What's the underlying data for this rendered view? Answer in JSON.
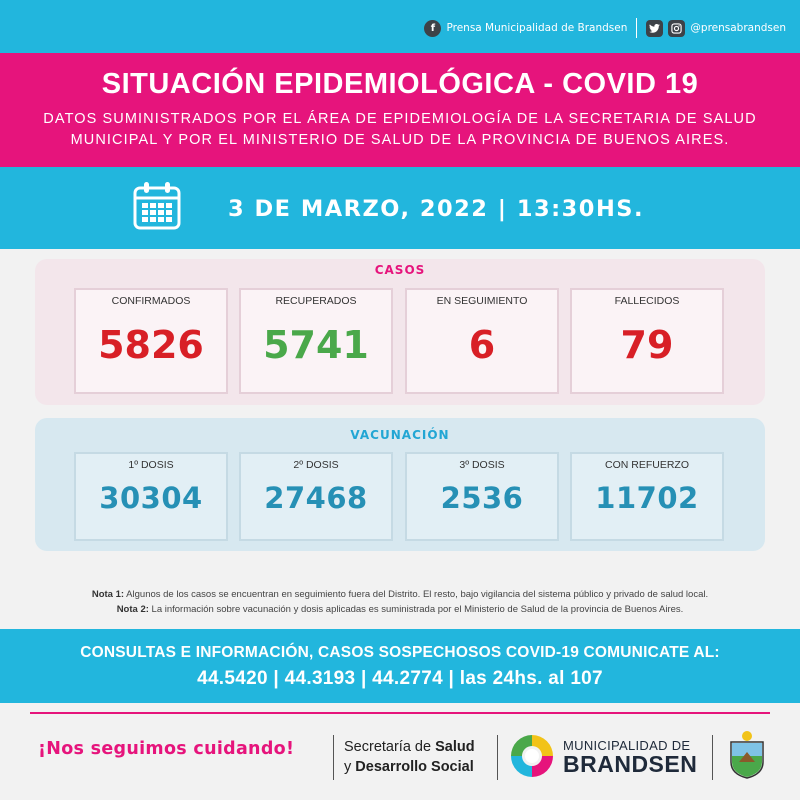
{
  "header": {
    "facebook_label": "Prensa Municipalidad de Brandsen",
    "social_handle": "@prensabrandsen",
    "icons": [
      "facebook-icon",
      "twitter-icon",
      "instagram-icon"
    ]
  },
  "title": "SITUACIÓN EPIDEMIOLÓGICA - COVID 19",
  "subtitle_line1": "DATOS SUMINISTRADOS POR EL ÁREA DE EPIDEMIOLOGÍA DE LA SECRETARIA DE SALUD",
  "subtitle_line2": "MUNICIPAL Y POR EL MINISTERIO DE SALUD DE LA PROVINCIA DE BUENOS AIRES.",
  "date": "3 DE MARZO, 2022 | 13:30HS.",
  "casos": {
    "title": "CASOS",
    "items": [
      {
        "label": "CONFIRMADOS",
        "value": "5826",
        "color": "#d81f26"
      },
      {
        "label": "RECUPERADOS",
        "value": "5741",
        "color": "#4aa84a"
      },
      {
        "label": "EN SEGUIMIENTO",
        "value": "6",
        "color": "#d81f26"
      },
      {
        "label": "FALLECIDOS",
        "value": "79",
        "color": "#d81f26"
      }
    ]
  },
  "vacunacion": {
    "title": "VACUNACIÓN",
    "items": [
      {
        "label": "1º DOSIS",
        "value": "30304"
      },
      {
        "label": "2º DOSIS",
        "value": "27468"
      },
      {
        "label": "3º DOSIS",
        "value": "2536"
      },
      {
        "label": "CON REFUERZO",
        "value": "11702"
      }
    ]
  },
  "notes": {
    "nota1_label": "Nota 1:",
    "nota1_text": " Algunos de los casos se encuentran en seguimiento fuera del Distrito. El resto, bajo vigilancia del sistema público y privado de salud local.",
    "nota2_label": "Nota 2:",
    "nota2_text": " La información sobre vacunación y dosis aplicadas es suministrada por el Ministerio de Salud de la provincia de Buenos Aires."
  },
  "contact": {
    "line1": "CONSULTAS E INFORMACIÓN, CASOS SOSPECHOSOS COVID-19 COMUNICATE AL:",
    "line2": "44.5420 | 44.3193 | 44.2774 | las 24hs. al 107"
  },
  "footer": {
    "slogan": "¡Nos seguimos cuidando!",
    "secretaria_pre": "Secretaría de ",
    "secretaria_bold1": "Salud",
    "secretaria_pre2": "y ",
    "secretaria_bold2": "Desarrollo Social",
    "municipalidad": "MUNICIPALIDAD DE",
    "brandsen": "BRANDSEN"
  },
  "colors": {
    "pink": "#e6147c",
    "cyan": "#22b6dd",
    "red": "#d81f26",
    "green": "#4aa84a",
    "teal": "#2690b5"
  }
}
